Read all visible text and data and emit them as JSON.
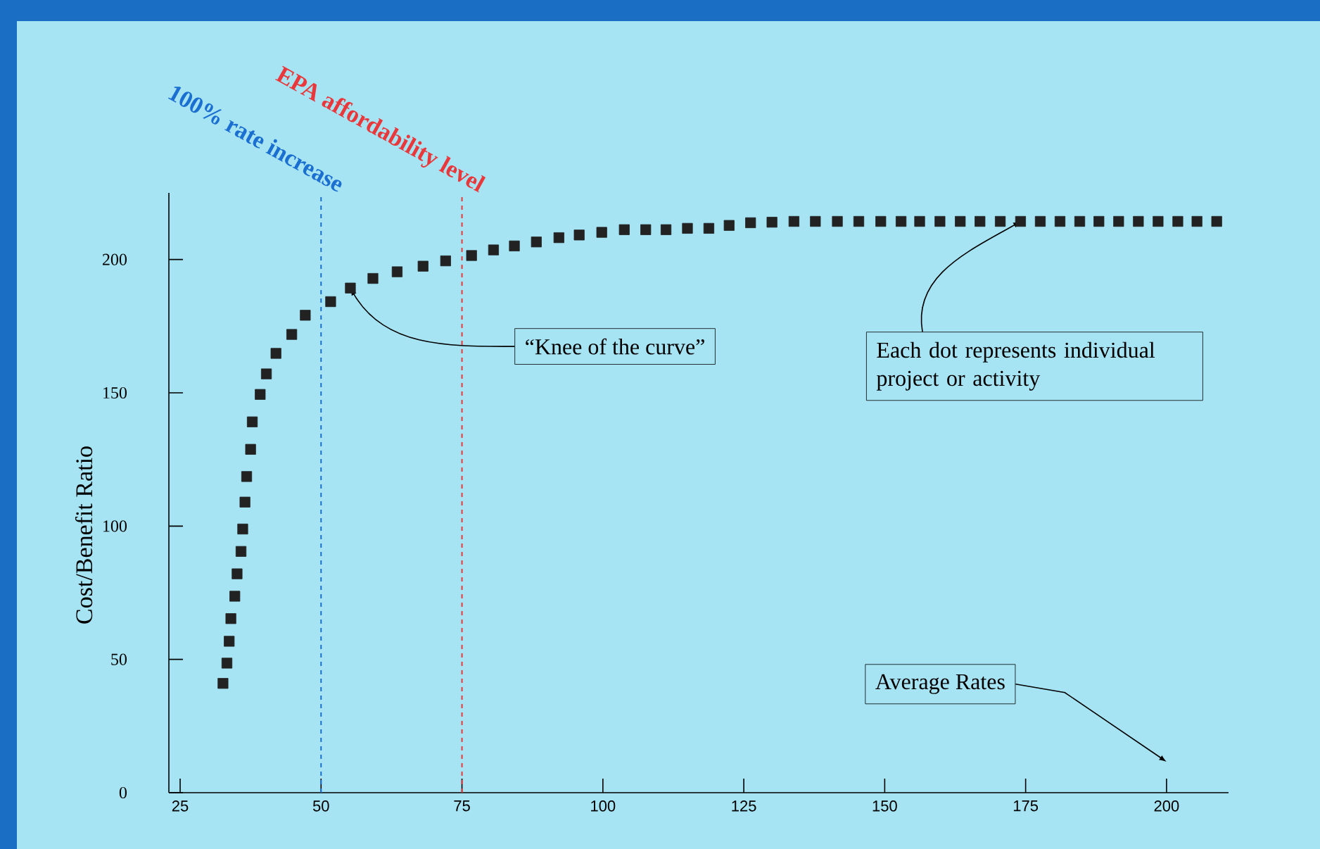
{
  "chart_data": {
    "type": "scatter",
    "xlabel": "Average Rates",
    "ylabel": "Cost/Benefit Ratio",
    "x": [
      32.6,
      33.3,
      33.7,
      34.0,
      34.7,
      35.1,
      35.8,
      36.1,
      36.5,
      36.8,
      37.5,
      37.8,
      39.2,
      40.3,
      42.0,
      44.8,
      47.2,
      51.7,
      55.2,
      59.2,
      63.5,
      68.1,
      72.1,
      76.7,
      80.6,
      84.3,
      88.2,
      92.2,
      95.8,
      99.8,
      103.8,
      107.6,
      111.2,
      115.0,
      118.8,
      122.4,
      126.2,
      130.0,
      133.9,
      137.7,
      141.6,
      145.4,
      149.3,
      152.9,
      156.2,
      159.8,
      163.4,
      166.9,
      170.5,
      174.1,
      177.6,
      181.1,
      184.6,
      188.0,
      191.5,
      195.0,
      198.5,
      202.0,
      205.4,
      208.9
    ],
    "values": [
      41.0,
      48.6,
      56.8,
      65.3,
      73.7,
      82.1,
      90.5,
      98.9,
      109.0,
      118.6,
      128.8,
      139.1,
      149.4,
      157.1,
      164.8,
      171.9,
      179.1,
      184.2,
      189.3,
      192.9,
      195.4,
      197.5,
      199.5,
      201.5,
      203.6,
      205.1,
      206.6,
      208.2,
      209.2,
      210.2,
      211.2,
      211.2,
      211.2,
      211.7,
      211.7,
      212.8,
      213.8,
      214.0,
      214.3,
      214.3,
      214.3,
      214.3,
      214.3,
      214.3,
      214.3,
      214.3,
      214.3,
      214.3,
      214.3,
      214.3,
      214.3,
      214.3,
      214.3,
      214.3,
      214.3,
      214.3,
      214.3,
      214.3,
      214.3,
      214.3
    ],
    "color": "#222222",
    "marker": "square",
    "xlim": [
      23,
      211
    ],
    "ylim": [
      0,
      225
    ],
    "xticks": [
      25,
      50,
      75,
      100,
      125,
      150,
      175,
      200
    ],
    "yticks": [
      0,
      50,
      100,
      150,
      200
    ],
    "ref_lines": [
      {
        "axis": "x",
        "value": 50,
        "label": "100% rate increase",
        "color": "#1a6fd0",
        "line_style": "dashed"
      },
      {
        "axis": "x",
        "value": 75,
        "label": "EPA affordability level",
        "color": "#e8383c",
        "line_style": "dashed"
      }
    ],
    "annotations": [
      {
        "text": "“Knee of the curve”",
        "x": 55.2,
        "y": 189.3
      },
      {
        "text": "Each dot represents individual project or activity",
        "x": 174.1,
        "y": 214.3
      }
    ]
  }
}
